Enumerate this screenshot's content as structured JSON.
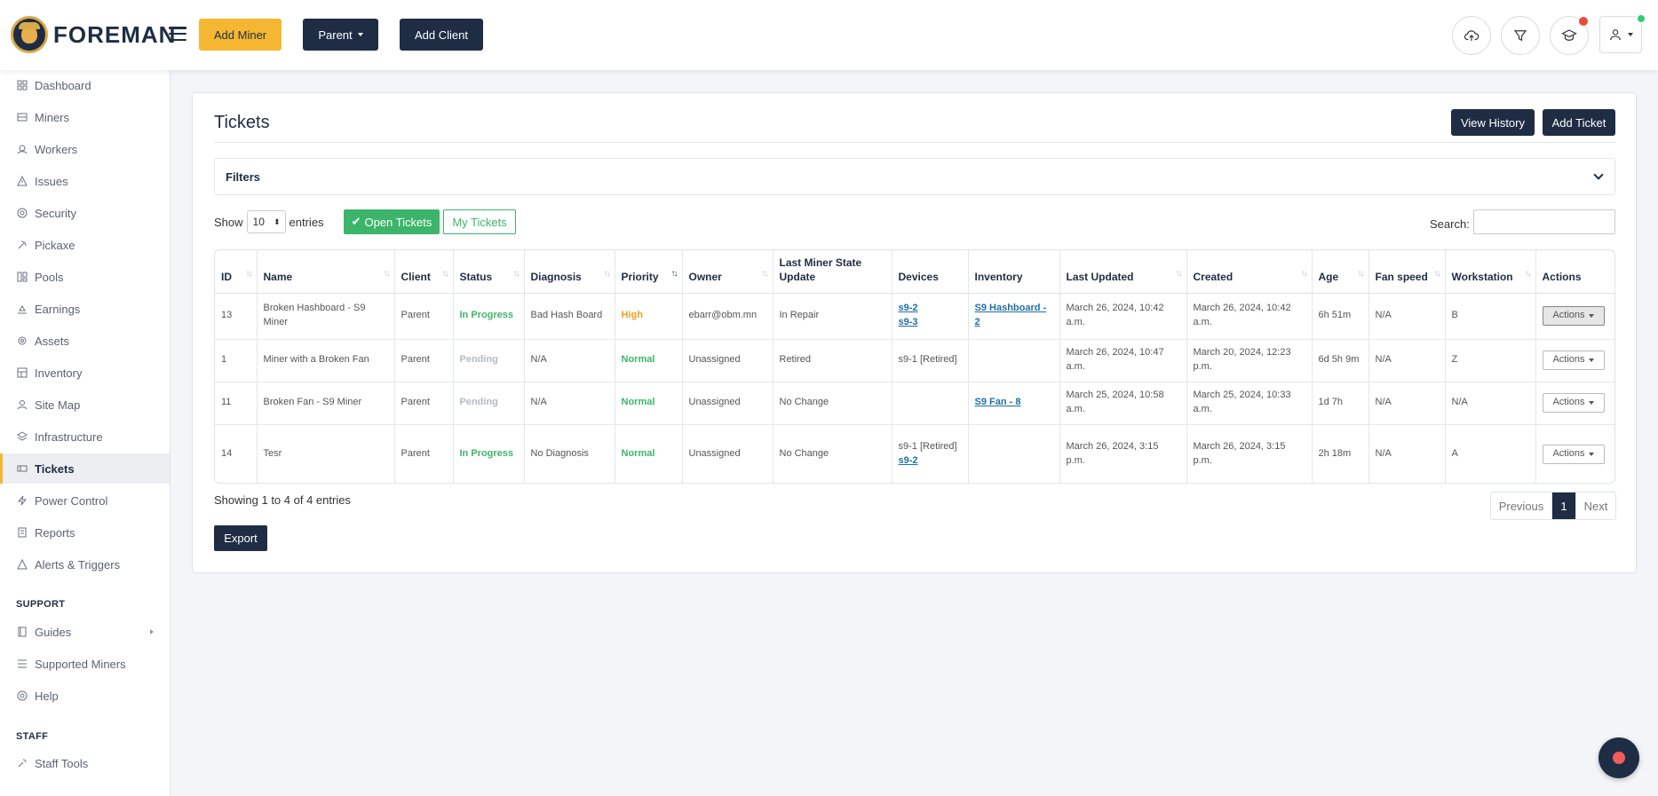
{
  "brand": {
    "name": "FOREMAN"
  },
  "header": {
    "add_miner": "Add Miner",
    "parent": "Parent",
    "add_client": "Add Client"
  },
  "sidebar": {
    "items": [
      {
        "label": "Dashboard",
        "icon": "dashboard-icon"
      },
      {
        "label": "Miners",
        "icon": "miners-icon"
      },
      {
        "label": "Workers",
        "icon": "workers-icon"
      },
      {
        "label": "Issues",
        "icon": "warning-icon"
      },
      {
        "label": "Security",
        "icon": "shield-icon"
      },
      {
        "label": "Pickaxe",
        "icon": "pickaxe-icon"
      },
      {
        "label": "Pools",
        "icon": "pools-icon"
      },
      {
        "label": "Earnings",
        "icon": "earnings-icon"
      },
      {
        "label": "Assets",
        "icon": "assets-icon"
      },
      {
        "label": "Inventory",
        "icon": "inventory-icon"
      },
      {
        "label": "Site Map",
        "icon": "sitemap-icon"
      },
      {
        "label": "Infrastructure",
        "icon": "layers-icon"
      },
      {
        "label": "Tickets",
        "icon": "ticket-icon"
      },
      {
        "label": "Power Control",
        "icon": "bolt-icon"
      },
      {
        "label": "Reports",
        "icon": "report-icon"
      },
      {
        "label": "Alerts & Triggers",
        "icon": "alert-icon"
      }
    ],
    "support_heading": "SUPPORT",
    "support_items": [
      {
        "label": "Guides",
        "icon": "book-icon"
      },
      {
        "label": "Supported Miners",
        "icon": "list-icon"
      },
      {
        "label": "Help",
        "icon": "help-icon"
      }
    ],
    "staff_heading": "STAFF",
    "staff_items": [
      {
        "label": "Staff Tools",
        "icon": "tools-icon"
      }
    ]
  },
  "page": {
    "title": "Tickets",
    "view_history": "View History",
    "add_ticket": "Add Ticket",
    "filters": "Filters",
    "show": "Show",
    "entries_value": "10",
    "entries": "entries",
    "open_tickets": "Open Tickets",
    "my_tickets": "My Tickets",
    "search_label": "Search:",
    "showing": "Showing 1 to 4 of 4 entries",
    "prev": "Previous",
    "page_num": "1",
    "next": "Next",
    "export": "Export"
  },
  "table": {
    "headers": [
      "ID",
      "Name",
      "Client",
      "Status",
      "Diagnosis",
      "Priority",
      "Owner",
      "Last Miner State Update",
      "Devices",
      "Inventory",
      "Last Updated",
      "Created",
      "Age",
      "Fan speed",
      "Workstation",
      "Actions"
    ],
    "rows": [
      {
        "id": "13",
        "name": "Broken Hashboard - S9 Miner",
        "client": "Parent",
        "status": "In Progress",
        "diagnosis": "Bad Hash Board",
        "priority": "High",
        "owner": "ebarr@obm.mn",
        "state": "In Repair",
        "device1": "s9-2",
        "device2": "s9-3",
        "inventory": "S9 Hashboard - 2",
        "updated": "March 26, 2024, 10:42 a.m.",
        "created": "March 26, 2024, 10:42 a.m.",
        "age": "6h 51m",
        "fan": "N/A",
        "workstation": "B",
        "action": "Actions"
      },
      {
        "id": "1",
        "name": "Miner with a Broken Fan",
        "client": "Parent",
        "status": "Pending",
        "diagnosis": "N/A",
        "priority": "Normal",
        "owner": "Unassigned",
        "state": "Retired",
        "device_text": "s9-1 [Retired]",
        "inventory": "",
        "updated": "March 26, 2024, 10:47 a.m.",
        "created": "March 20, 2024, 12:23 p.m.",
        "age": "6d 5h 9m",
        "fan": "N/A",
        "workstation": "Z",
        "action": "Actions"
      },
      {
        "id": "11",
        "name": "Broken Fan - S9 Miner",
        "client": "Parent",
        "status": "Pending",
        "diagnosis": "N/A",
        "priority": "Normal",
        "owner": "Unassigned",
        "state": "No Change",
        "inventory": "S9 Fan - 8",
        "updated": "March 25, 2024, 10:58 a.m.",
        "created": "March 25, 2024, 10:33 a.m.",
        "age": "1d 7h",
        "fan": "N/A",
        "workstation": "N/A",
        "action": "Actions"
      },
      {
        "id": "14",
        "name": "Tesr",
        "client": "Parent",
        "status": "In Progress",
        "diagnosis": "No Diagnosis",
        "priority": "Normal",
        "owner": "Unassigned",
        "state": "No Change",
        "device_text": "s9-1 [Retired]",
        "device1": "s9-2",
        "inventory": "",
        "updated": "March 26, 2024, 3:15 p.m.",
        "created": "March 26, 2024, 3:15 p.m.",
        "age": "2h 18m",
        "fan": "N/A",
        "workstation": "A",
        "action": "Actions"
      }
    ]
  },
  "colors": {
    "navy": "#1f2d44",
    "yellow": "#f5b731",
    "green": "#3cb56a",
    "orange": "#f0a020",
    "red": "#e74c3c"
  }
}
